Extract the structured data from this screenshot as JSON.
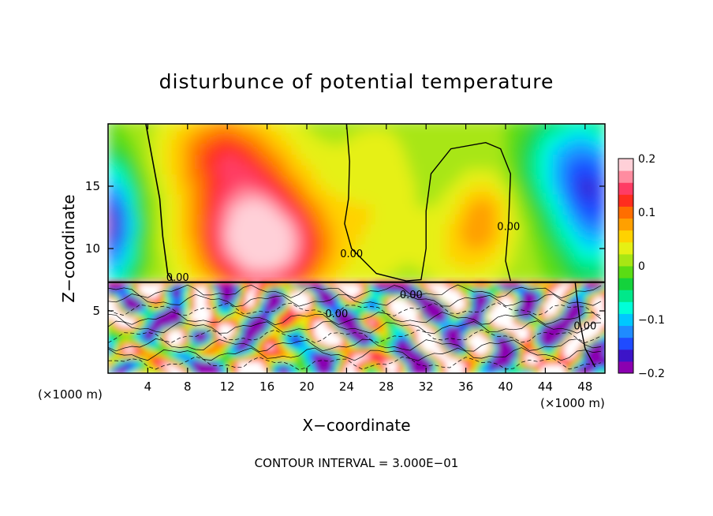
{
  "chart_data": {
    "type": "heatmap",
    "title": "disturbunce of potential temperature",
    "xlabel": "X−coordinate",
    "ylabel": "Z−coordinate",
    "x_unit_left": "(×1000 m)",
    "x_unit_right": "(×1000 m)",
    "xlim": [
      0,
      50
    ],
    "ylim": [
      0,
      20
    ],
    "x_ticks": [
      4,
      8,
      12,
      16,
      20,
      24,
      28,
      32,
      36,
      40,
      44,
      48
    ],
    "y_ticks": [
      5,
      10,
      15
    ],
    "footer": "CONTOUR INTERVAL = 3.000E−01",
    "colorbar": {
      "min": -0.2,
      "max": 0.2,
      "ticks": [
        "0.2",
        "0.1",
        "0",
        "−0.1",
        "−0.2"
      ],
      "tick_values": [
        0.2,
        0.1,
        0,
        -0.1,
        -0.2
      ],
      "colors": [
        "#8b00b0",
        "#3c14c8",
        "#1f4bff",
        "#1f8bff",
        "#00c8ff",
        "#00ffd8",
        "#00e88a",
        "#14d23c",
        "#5adc14",
        "#a8e614",
        "#e6f014",
        "#ffd200",
        "#ffa000",
        "#ff6e00",
        "#ff2d1e",
        "#ff3c64",
        "#ff8ca0",
        "#ffd0d8"
      ]
    },
    "contour_labels": [
      {
        "text": "0.00",
        "x": 7,
        "z": 7.4
      },
      {
        "text": "0.00",
        "x": 24.5,
        "z": 9.3
      },
      {
        "text": "0.00",
        "x": 30.5,
        "z": 6
      },
      {
        "text": "0.00",
        "x": 40.3,
        "z": 11.5
      },
      {
        "text": "0.00",
        "x": 48,
        "z": 3.5
      },
      {
        "text": "0.00",
        "x": 23,
        "z": 4.5
      }
    ]
  }
}
